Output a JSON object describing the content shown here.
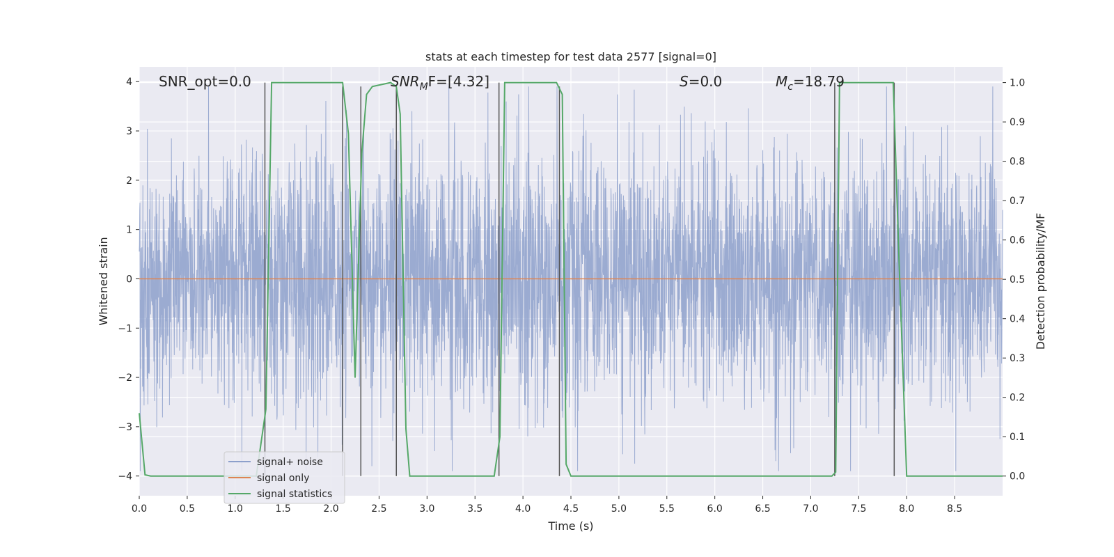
{
  "chart_data": {
    "type": "line",
    "title": "stats at each timestep for test data 2577 [signal=0]",
    "xlabel": "Time (s)",
    "ylabel_left": "Whitened strain",
    "ylabel_right": "Detection probability/MF",
    "xlim": [
      0.0,
      9.0
    ],
    "ylim_left": [
      -4.4,
      4.3
    ],
    "ylim_right": [
      -0.05,
      1.04
    ],
    "x_ticks": [
      0.0,
      0.5,
      1.0,
      1.5,
      2.0,
      2.5,
      3.0,
      3.5,
      4.0,
      4.5,
      5.0,
      5.5,
      6.0,
      6.5,
      7.0,
      7.5,
      8.0,
      8.5
    ],
    "x_tick_labels": [
      "0.0",
      "0.5",
      "1.0",
      "1.5",
      "2.0",
      "2.5",
      "3.0",
      "3.5",
      "4.0",
      "4.5",
      "5.0",
      "5.5",
      "6.0",
      "6.5",
      "7.0",
      "7.5",
      "8.0",
      "8.5"
    ],
    "y_left_ticks": [
      4,
      3,
      2,
      1,
      0,
      -1,
      -2,
      -3,
      -4
    ],
    "y_left_tick_labels": [
      "4",
      "3",
      "2",
      "1",
      "0",
      "−1",
      "−2",
      "−3",
      "−4"
    ],
    "y_right_ticks": [
      1.0,
      0.9,
      0.8,
      0.7,
      0.6,
      0.5,
      0.4,
      0.3,
      0.2,
      0.1,
      0.0
    ],
    "y_right_tick_labels": [
      "1.0",
      "0.9",
      "0.8",
      "0.7",
      "0.6",
      "0.5",
      "0.4",
      "0.3",
      "0.2",
      "0.1",
      "0.0"
    ],
    "grid": true,
    "legend_position": "lower-left",
    "annotations": [
      {
        "id": "snr-opt",
        "text": "SNR_opt=0.0"
      },
      {
        "id": "snr-mf",
        "prefix": "SNR",
        "sub": "M",
        "suffix": "F=[4.32]"
      },
      {
        "id": "s-value",
        "prefix": "S",
        "suffix": "=0.0"
      },
      {
        "id": "mc-value",
        "prefix": "M",
        "sub": "c",
        "suffix": "=18.79"
      }
    ],
    "series": [
      {
        "name": "signal+ noise",
        "color": "#8da0cb",
        "axis": "left",
        "kind": "noise",
        "amplitude_sigma": 1.0,
        "approx_range": [
          -3.9,
          3.9
        ]
      },
      {
        "name": "signal only",
        "color": "#dd8452",
        "axis": "left",
        "x": [
          0.0,
          9.0
        ],
        "y": [
          0.0,
          0.0
        ]
      },
      {
        "name": "signal statistics",
        "color": "#55a868",
        "axis": "right",
        "x": [
          0.0,
          0.06,
          0.12,
          1.22,
          1.32,
          1.38,
          2.12,
          2.18,
          2.25,
          2.32,
          2.37,
          2.43,
          2.62,
          2.68,
          2.72,
          2.78,
          2.82,
          3.7,
          3.76,
          3.81,
          4.35,
          4.41,
          4.45,
          4.5,
          7.22,
          7.26,
          7.3,
          7.86,
          7.92,
          8.0,
          9.0
        ],
        "y": [
          0.16,
          0.003,
          0.0,
          0.0,
          0.17,
          1.0,
          1.0,
          0.87,
          0.25,
          0.82,
          0.97,
          0.99,
          1.0,
          0.99,
          0.92,
          0.12,
          0.0,
          0.0,
          0.1,
          1.0,
          1.0,
          0.97,
          0.03,
          0.0,
          0.0,
          0.01,
          1.0,
          1.0,
          0.55,
          0.0,
          0.0
        ]
      }
    ],
    "vertical_markers": {
      "color": "#555555",
      "x": [
        1.31,
        2.12,
        2.31,
        2.68,
        3.75,
        4.38,
        7.25,
        7.87
      ],
      "top": [
        1.0,
        0.99,
        0.99,
        0.99,
        1.0,
        0.99,
        1.0,
        1.0
      ]
    }
  }
}
